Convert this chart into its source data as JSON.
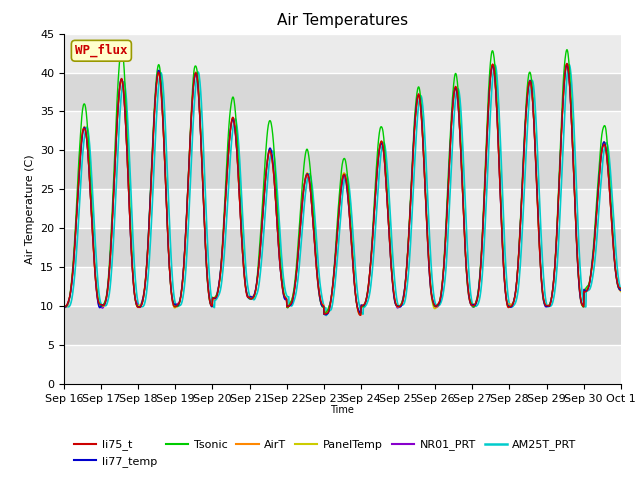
{
  "title": "Air Temperatures",
  "xlabel": "Time",
  "ylabel": "Air Temperature (C)",
  "ylim": [
    0,
    45
  ],
  "yticks": [
    0,
    5,
    10,
    15,
    20,
    25,
    30,
    35,
    40,
    45
  ],
  "date_labels": [
    "Sep 16",
    "Sep 17",
    "Sep 18",
    "Sep 19",
    "Sep 20",
    "Sep 21",
    "Sep 22",
    "Sep 23",
    "Sep 24",
    "Sep 25",
    "Sep 26",
    "Sep 27",
    "Sep 28",
    "Sep 29",
    "Sep 30",
    "Oct 1"
  ],
  "series": {
    "li75_t": {
      "color": "#cc0000",
      "lw": 1.0
    },
    "li77_temp": {
      "color": "#0000cc",
      "lw": 1.0
    },
    "Tsonic": {
      "color": "#00cc00",
      "lw": 1.0
    },
    "AirT": {
      "color": "#ff8800",
      "lw": 1.0
    },
    "PanelTemp": {
      "color": "#cccc00",
      "lw": 1.0
    },
    "NR01_PRT": {
      "color": "#8800cc",
      "lw": 1.0
    },
    "AM25T_PRT": {
      "color": "#00cccc",
      "lw": 1.2
    }
  },
  "annotation": {
    "text": "WP_flux",
    "fontsize": 9,
    "color": "#cc0000",
    "bg_color": "#ffffcc",
    "border_color": "#999900"
  },
  "bg_light": "#ebebeb",
  "bg_dark": "#d8d8d8",
  "grid_color": "#ffffff",
  "title_fontsize": 11,
  "day_maxes": [
    33,
    39,
    40,
    40,
    34,
    30,
    27,
    27,
    31,
    37,
    38,
    41,
    39,
    41,
    31
  ],
  "day_mins": [
    10,
    10,
    10,
    10,
    11,
    11,
    10,
    9,
    10,
    10,
    10,
    10,
    10,
    10,
    12
  ],
  "tsonic_extra": [
    3,
    4,
    1,
    1,
    3,
    4,
    3,
    2,
    2,
    1,
    2,
    2,
    1,
    2,
    2
  ],
  "cyan_lag": 0.06
}
